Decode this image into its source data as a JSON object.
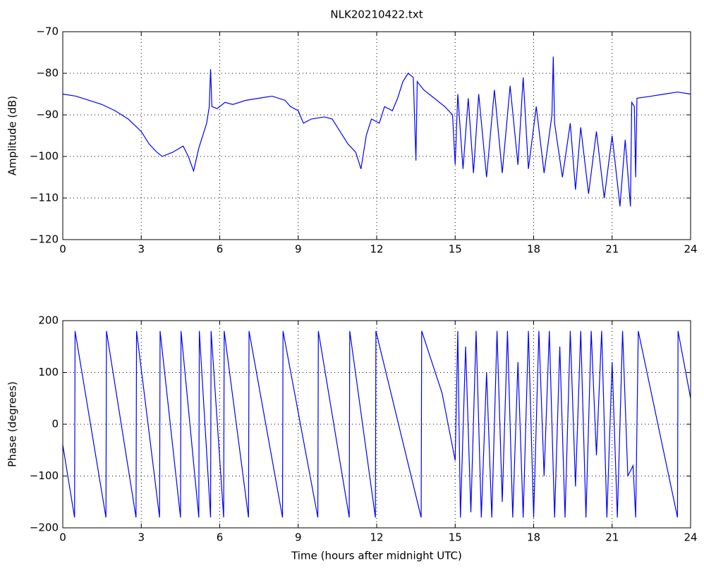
{
  "chart_data": [
    {
      "type": "line",
      "title": "NLK20210422.txt",
      "y_label": "Amplitude (dB)",
      "grid": true,
      "xlim": [
        0,
        24
      ],
      "xticks": [
        0,
        3,
        6,
        9,
        12,
        15,
        18,
        21,
        24
      ],
      "ylim": [
        -120,
        -70
      ],
      "yticks": [
        {
          "value": -70,
          "label": "−70"
        },
        {
          "value": -80,
          "label": "−80"
        },
        {
          "value": -90,
          "label": "−90"
        },
        {
          "value": -100,
          "label": "−100"
        },
        {
          "value": -110,
          "label": "−110"
        },
        {
          "value": -120,
          "label": "−120"
        }
      ],
      "series": [
        {
          "color": "#0000ff",
          "x": [
            0,
            0.5,
            1,
            1.5,
            2,
            2.5,
            3,
            3.3,
            3.6,
            3.8,
            4.2,
            4.6,
            4.8,
            5,
            5.2,
            5.5,
            5.6,
            5.65,
            5.7,
            5.9,
            6.2,
            6.5,
            7,
            7.5,
            8,
            8.5,
            8.7,
            9,
            9.2,
            9.5,
            10,
            10.3,
            10.6,
            10.9,
            11.2,
            11.4,
            11.6,
            11.8,
            12.1,
            12.3,
            12.6,
            12.8,
            13,
            13.2,
            13.4,
            13.5,
            13.55,
            13.8,
            14.2,
            14.6,
            14.9,
            15,
            15.1,
            15.3,
            15.5,
            15.7,
            15.9,
            16.2,
            16.5,
            16.8,
            17.1,
            17.4,
            17.6,
            17.8,
            18.1,
            18.4,
            18.7,
            18.75,
            18.8,
            19.1,
            19.4,
            19.6,
            19.8,
            20.1,
            20.4,
            20.7,
            21,
            21.3,
            21.5,
            21.7,
            21.75,
            21.85,
            21.9,
            21.95,
            22.5,
            23,
            23.5,
            24
          ],
          "values": [
            -85,
            -85.5,
            -86.5,
            -87.5,
            -89,
            -91,
            -94,
            -97,
            -99,
            -100,
            -99,
            -97.5,
            -100,
            -103.5,
            -98,
            -92,
            -88,
            -79,
            -88,
            -88.5,
            -87,
            -87.5,
            -86.5,
            -86,
            -85.5,
            -86.5,
            -88,
            -89,
            -92,
            -91,
            -90.5,
            -91,
            -94,
            -97,
            -99,
            -103,
            -95,
            -91,
            -92,
            -88,
            -89,
            -86,
            -82,
            -80,
            -81,
            -101,
            -82,
            -84,
            -86,
            -88,
            -90,
            -102,
            -85,
            -103,
            -86,
            -104,
            -85,
            -105,
            -84,
            -104,
            -83,
            -102,
            -81,
            -103,
            -88,
            -104,
            -90,
            -76,
            -92,
            -105,
            -92,
            -108,
            -93,
            -109,
            -94,
            -110,
            -95,
            -112,
            -96,
            -112,
            -87,
            -88,
            -105,
            -86,
            -85.5,
            -85,
            -84.5,
            -85
          ]
        }
      ]
    },
    {
      "type": "line",
      "x_label": "Time (hours after midnight UTC)",
      "y_label": "Phase (degrees)",
      "grid": true,
      "xlim": [
        0,
        24
      ],
      "xticks": [
        0,
        3,
        6,
        9,
        12,
        15,
        18,
        21,
        24
      ],
      "ylim": [
        -200,
        200
      ],
      "yticks": [
        200,
        100,
        0,
        {
          "value": -100,
          "label": "−100"
        },
        {
          "value": -200,
          "label": "−200"
        }
      ],
      "series": [
        {
          "color": "#0000ff",
          "x": [
            0,
            0.45,
            0.47,
            1.65,
            1.67,
            2.8,
            2.82,
            3.7,
            3.72,
            4.5,
            4.52,
            5.2,
            5.22,
            5.65,
            5.67,
            6.15,
            6.17,
            7.1,
            7.12,
            8.4,
            8.42,
            9.75,
            9.77,
            10.95,
            10.97,
            11.95,
            11.97,
            13.7,
            13.72,
            14.5,
            15,
            15.1,
            15.2,
            15.4,
            15.6,
            15.8,
            16,
            16.2,
            16.4,
            16.6,
            16.8,
            17,
            17.2,
            17.4,
            17.6,
            17.8,
            18,
            18.2,
            18.4,
            18.6,
            18.8,
            19,
            19.2,
            19.4,
            19.6,
            19.8,
            20,
            20.2,
            20.4,
            20.6,
            20.8,
            21,
            21.2,
            21.4,
            21.6,
            21.8,
            21.9,
            22,
            23.5,
            23.52,
            24
          ],
          "values": [
            -40,
            -180,
            180,
            -180,
            180,
            -180,
            180,
            -180,
            180,
            -180,
            180,
            -180,
            180,
            -180,
            180,
            -180,
            180,
            -180,
            180,
            -180,
            180,
            -180,
            180,
            -180,
            180,
            -180,
            180,
            -180,
            180,
            60,
            -70,
            180,
            -180,
            150,
            -170,
            180,
            -180,
            100,
            -180,
            180,
            -150,
            180,
            -180,
            120,
            -180,
            180,
            -180,
            180,
            -100,
            180,
            -180,
            150,
            -180,
            180,
            -120,
            180,
            -180,
            180,
            -60,
            180,
            -180,
            120,
            -180,
            180,
            -100,
            -80,
            -180,
            180,
            -180,
            180,
            50
          ]
        }
      ]
    }
  ]
}
